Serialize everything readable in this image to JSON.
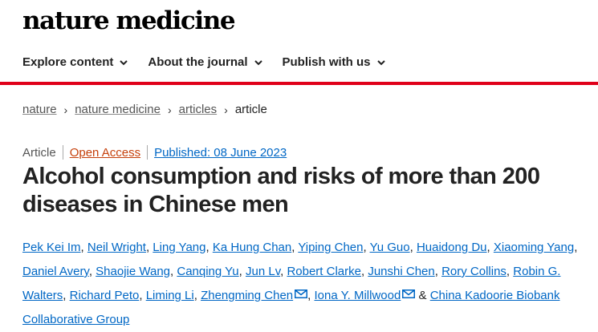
{
  "header": {
    "logo": "nature medicine",
    "nav": [
      {
        "label": "Explore content"
      },
      {
        "label": "About the journal"
      },
      {
        "label": "Publish with us"
      }
    ]
  },
  "colors": {
    "accent_red": "#e0001a",
    "link_blue": "#0067c5",
    "open_access": "#c5400b"
  },
  "breadcrumb": {
    "items": [
      "nature",
      "nature medicine",
      "articles"
    ],
    "current": "article"
  },
  "article": {
    "type": "Article",
    "access": "Open Access",
    "published": "Published: 08 June 2023",
    "title": "Alcohol consumption and risks of more than 200 diseases in Chinese men",
    "authors": [
      "Pek Kei Im",
      "Neil Wright",
      "Ling Yang",
      "Ka Hung Chan",
      "Yiping Chen",
      "Yu Guo",
      "Huaidong Du",
      "Xiaoming Yang",
      "Daniel Avery",
      "Shaojie Wang",
      "Canqing Yu",
      "Jun Lv",
      "Robert Clarke",
      "Junshi Chen",
      "Rory Collins",
      "Robin G. Walters",
      "Richard Peto",
      "Liming Li",
      "Zhengming Chen",
      "Iona Y. Millwood",
      "China Kadoorie Biobank Collaborative Group"
    ],
    "conjunction": "&",
    "corresponding_icon": "mail-icon"
  }
}
